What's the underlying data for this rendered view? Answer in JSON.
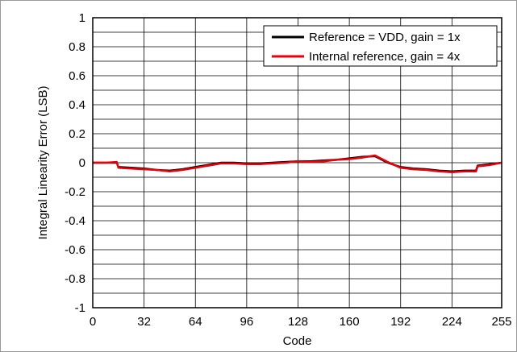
{
  "chart_data": {
    "type": "line",
    "title": "",
    "xlabel": "Code",
    "ylabel": "Integral Linearity Error (LSB)",
    "xlim": [
      0,
      255
    ],
    "ylim": [
      -1,
      1
    ],
    "xticks": [
      0,
      32,
      64,
      96,
      128,
      160,
      192,
      224,
      255
    ],
    "yticks": [
      -1,
      -0.8,
      -0.6,
      -0.4,
      -0.2,
      0,
      0.2,
      0.4,
      0.6,
      0.8,
      1
    ],
    "xtick_labels": [
      "0",
      "32",
      "64",
      "96",
      "128",
      "160",
      "192",
      "224",
      "255"
    ],
    "ytick_labels": [
      "-1",
      "-0.8",
      "-0.6",
      "-0.4",
      "-0.2",
      "0",
      "0.2",
      "0.4",
      "0.6",
      "0.8",
      "1"
    ],
    "grid": true,
    "legend_position": "top-right",
    "series": [
      {
        "name": "Reference = VDD, gain = 1x",
        "color": "#000000",
        "x": [
          0,
          8,
          15,
          16,
          24,
          32,
          40,
          48,
          56,
          64,
          72,
          80,
          88,
          96,
          104,
          112,
          120,
          128,
          136,
          144,
          152,
          160,
          168,
          176,
          184,
          192,
          200,
          208,
          216,
          224,
          232,
          239,
          240,
          248,
          255
        ],
        "y": [
          0.0,
          0.0,
          0.0,
          -0.03,
          -0.035,
          -0.04,
          -0.05,
          -0.055,
          -0.045,
          -0.03,
          -0.015,
          0.0,
          0.0,
          -0.005,
          -0.005,
          0.0,
          0.005,
          0.01,
          0.01,
          0.015,
          0.02,
          0.03,
          0.04,
          0.045,
          0.0,
          -0.03,
          -0.04,
          -0.045,
          -0.055,
          -0.06,
          -0.055,
          -0.055,
          -0.02,
          -0.01,
          0.0
        ]
      },
      {
        "name": "Internal reference, gain = 4x",
        "color": "#e8000b",
        "x": [
          0,
          8,
          15,
          16,
          24,
          32,
          40,
          48,
          56,
          64,
          72,
          80,
          88,
          96,
          104,
          112,
          120,
          128,
          136,
          144,
          152,
          160,
          168,
          176,
          184,
          192,
          200,
          208,
          216,
          224,
          232,
          239,
          240,
          248,
          255
        ],
        "y": [
          0.0,
          0.0,
          0.005,
          -0.035,
          -0.04,
          -0.045,
          -0.05,
          -0.06,
          -0.05,
          -0.035,
          -0.02,
          -0.005,
          -0.005,
          -0.01,
          -0.01,
          -0.005,
          0.0,
          0.01,
          0.005,
          0.01,
          0.02,
          0.025,
          0.035,
          0.05,
          0.005,
          -0.035,
          -0.045,
          -0.05,
          -0.06,
          -0.065,
          -0.06,
          -0.06,
          -0.025,
          -0.015,
          0.0
        ]
      }
    ]
  }
}
